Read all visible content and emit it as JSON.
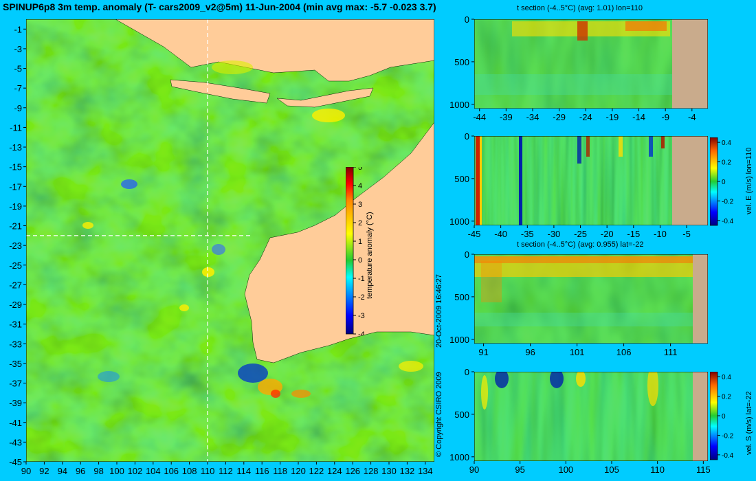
{
  "title": "SPINUP6p8 3m temp. anomaly (T- cars2009_v2@5m) 11-Jun-2004 (min avg max: -5.7 -0.023 3.7)",
  "copyright": "© Copyright CSIRO 2009",
  "timestamp": "20-Oct-2009 16:46:27",
  "colors": {
    "background": "#00ccff",
    "land": "#ffcc99",
    "section_land": "#c9ab8c",
    "water_base": "#22cc33",
    "guide_line": "#ffffff"
  },
  "chart_data": [
    {
      "id": "map",
      "type": "heatmap",
      "colorbar_label": "temperature anomaly (°C)",
      "colorbar_ticks": [
        "5",
        "4",
        "3",
        "2",
        "1",
        "0",
        "-1",
        "-2",
        "-3",
        "-4"
      ],
      "clim": [
        -4,
        5
      ],
      "x_ticks": [
        "90",
        "92",
        "94",
        "96",
        "98",
        "100",
        "102",
        "104",
        "106",
        "108",
        "110",
        "112",
        "114",
        "116",
        "118",
        "120",
        "122",
        "124",
        "126",
        "128",
        "130",
        "132",
        "134"
      ],
      "y_ticks": [
        "-1",
        "-3",
        "-5",
        "-7",
        "-9",
        "-11",
        "-13",
        "-15",
        "-17",
        "-19",
        "-21",
        "-23",
        "-25",
        "-27",
        "-29",
        "-31",
        "-33",
        "-35",
        "-37",
        "-39",
        "-41",
        "-43",
        "-45"
      ],
      "xlim": [
        90,
        135
      ],
      "ylim": [
        -45,
        0
      ],
      "guide_lon": 110,
      "guide_lat": -22
    },
    {
      "id": "tsec-lon",
      "type": "heatmap",
      "title": "t section (-4..5°C) (avg: 1.01) lon=110",
      "x_ticks": [
        "-44",
        "-39",
        "-34",
        "-29",
        "-24",
        "-19",
        "-14",
        "-9",
        "-4"
      ],
      "y_ticks": [
        "0",
        "500",
        "1000"
      ]
    },
    {
      "id": "vel-e",
      "type": "heatmap",
      "colorbar_label": "vel. E (m/s) lon=110",
      "colorbar_ticks": [
        "0.4",
        "0.2",
        "0",
        "-0.2",
        "-0.4"
      ],
      "x_ticks": [
        "-45",
        "-40",
        "-35",
        "-30",
        "-25",
        "-20",
        "-15",
        "-10",
        "-5"
      ],
      "y_ticks": [
        "0",
        "500",
        "1000"
      ]
    },
    {
      "id": "tsec-lat",
      "type": "heatmap",
      "title": "t section (-4..5°C) (avg: 0.955) lat=-22",
      "x_ticks": [
        "91",
        "96",
        "101",
        "106",
        "111"
      ],
      "y_ticks": [
        "0",
        "500",
        "1000"
      ]
    },
    {
      "id": "vel-s",
      "type": "heatmap",
      "colorbar_label": "vel. S (m/s) lat=-22",
      "colorbar_ticks": [
        "0.4",
        "0.2",
        "0",
        "-0.2",
        "-0.4"
      ],
      "x_ticks": [
        "90",
        "95",
        "100",
        "105",
        "110",
        "115"
      ],
      "y_ticks": [
        "0",
        "500",
        "1000"
      ]
    }
  ]
}
